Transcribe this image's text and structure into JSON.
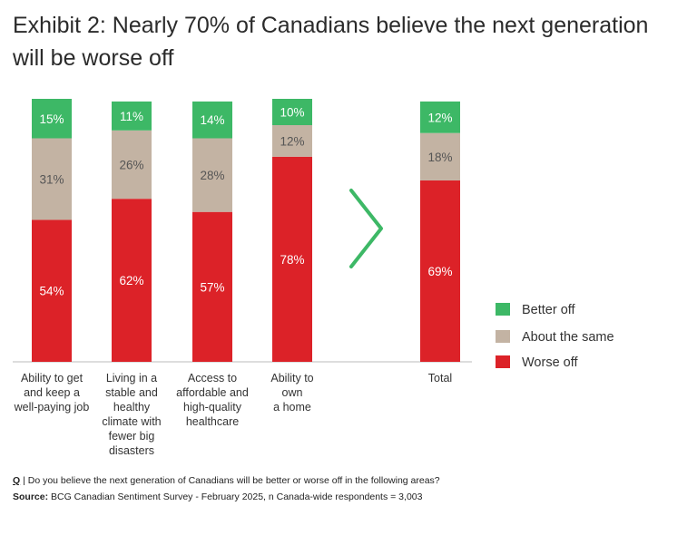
{
  "title": "Exhibit 2: Nearly 70% of Canadians believe the next generation will be worse off",
  "chart_data": {
    "type": "bar",
    "stacked": true,
    "percent_scale": true,
    "categories": [
      [
        "Ability to get",
        "and keep a",
        "well-paying job"
      ],
      [
        "Living in a",
        "stable and",
        "healthy",
        "climate with",
        "fewer big",
        "disasters"
      ],
      [
        "Access to",
        "affordable and",
        "high-quality",
        "healthcare"
      ],
      [
        "Ability to",
        "own",
        "a home"
      ],
      [
        "Total"
      ]
    ],
    "series": [
      {
        "name": "Worse off",
        "color": "#dc2228",
        "values": [
          54,
          62,
          57,
          78,
          69
        ],
        "labels": [
          "54%",
          "62%",
          "57%",
          "78%",
          "69%"
        ]
      },
      {
        "name": "About the same",
        "color": "#c3b3a3",
        "values": [
          31,
          26,
          28,
          12,
          18
        ],
        "labels": [
          "31%",
          "26%",
          "28%",
          "12%",
          "18%"
        ]
      },
      {
        "name": "Better off",
        "color": "#3db866",
        "values": [
          15,
          11,
          14,
          10,
          12
        ],
        "labels": [
          "15%",
          "11%",
          "14%",
          "10%",
          "12%"
        ]
      }
    ],
    "legend_order": [
      "Better off",
      "About the same",
      "Worse off"
    ],
    "legend_position": "right",
    "separator_icon": "chevron-right-icon",
    "separator_color": "#3db866",
    "ylim": [
      0,
      100
    ],
    "grid": false
  },
  "footnote": {
    "question_mark": "Q",
    "question": " | Do you believe the next generation of Canadians will be better or worse off in the following areas?",
    "source_label": "Source:",
    "source": " BCG Canadian Sentiment Survey - February 2025, n Canada-wide respondents = 3,003"
  }
}
